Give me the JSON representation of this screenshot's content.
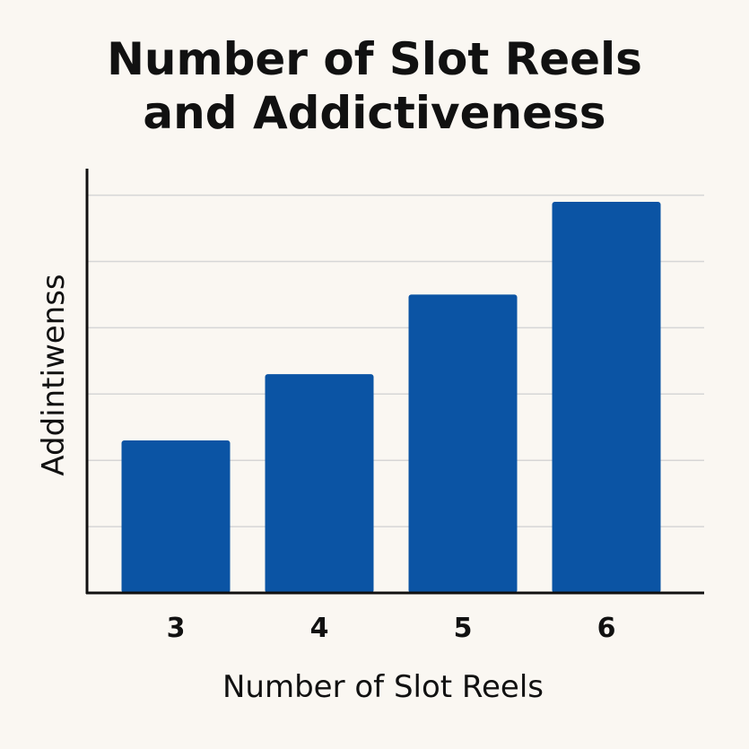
{
  "chart_data": {
    "type": "bar",
    "title_lines": [
      "Number of Slot Reels",
      "and Addictiveness"
    ],
    "xlabel": "Number of Slot Reels",
    "ylabel": "Addintiwenss",
    "categories": [
      "3",
      "4",
      "5",
      "6"
    ],
    "values": [
      2.3,
      3.3,
      4.5,
      5.9
    ],
    "ylim": [
      0,
      6.4
    ],
    "grid": true,
    "gridlines": [
      1,
      2,
      3,
      4,
      5,
      6
    ],
    "show_y_tick_labels": false,
    "legend": "none",
    "bar_color": "#0b54a4",
    "grid_color": "#d6d6d6",
    "axis_color": "#111111"
  }
}
